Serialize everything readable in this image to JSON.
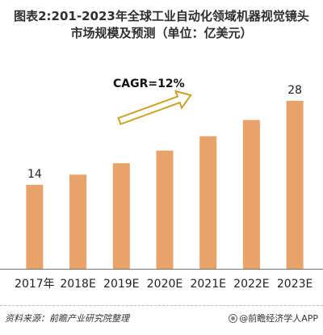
{
  "chart_data": {
    "type": "bar",
    "title_lines": [
      "图表2:201-2023年全球工业自动化领域机器视觉镜头",
      "市场规模及预测（单位：亿美元）"
    ],
    "categories": [
      "2017年",
      "2018E",
      "2019E",
      "2020E",
      "2021E",
      "2022E",
      "2023E"
    ],
    "values": [
      14,
      15.7,
      17.6,
      19.7,
      22.1,
      24.8,
      28
    ],
    "data_labels": [
      {
        "index": 0,
        "text": "14"
      },
      {
        "index": 6,
        "text": "28"
      }
    ],
    "ylim": [
      0,
      30
    ],
    "grid": false,
    "annotation": "CAGR=12%",
    "colors": {
      "bar": "#e8a36a",
      "arrow": "#c9a227",
      "axis": "#777777"
    }
  },
  "footer": {
    "source": "资料来源：前瞻产业研究院整理",
    "brand": "@前瞻经济学人APP"
  }
}
